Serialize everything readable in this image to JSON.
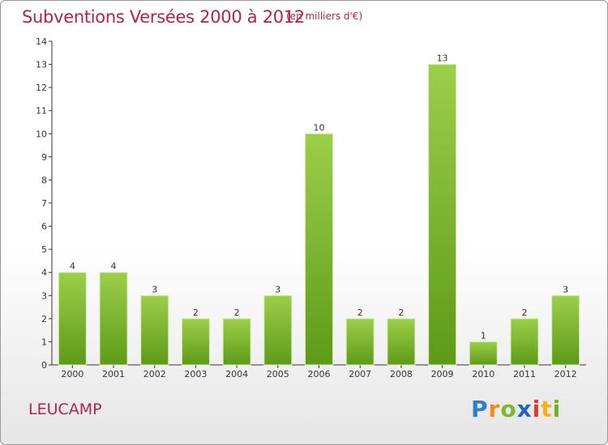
{
  "header": {
    "title": "Subventions Versées 2000 à 2012",
    "subtitle": "(en milliers d'€)"
  },
  "footer": {
    "town": "LEUCAMP",
    "logo_text": "Proxiti"
  },
  "colors": {
    "title": "#b1234f",
    "bar_top": "#9ccf4a",
    "bar_bottom": "#5e9a18"
  },
  "chart_data": {
    "type": "bar",
    "title": "Subventions Versées 2000 à 2012",
    "subtitle": "(en milliers d'€)",
    "xlabel": "",
    "ylabel": "",
    "categories": [
      "2000",
      "2001",
      "2002",
      "2003",
      "2004",
      "2005",
      "2006",
      "2007",
      "2008",
      "2009",
      "2010",
      "2011",
      "2012"
    ],
    "values": [
      4,
      4,
      3,
      2,
      2,
      3,
      10,
      2,
      2,
      13,
      1,
      2,
      3
    ],
    "y_ticks": [
      0,
      1,
      2,
      3,
      4,
      5,
      6,
      7,
      8,
      9,
      10,
      11,
      12,
      13,
      14
    ],
    "ylim": [
      0,
      14
    ],
    "grid": false,
    "legend": "none"
  }
}
